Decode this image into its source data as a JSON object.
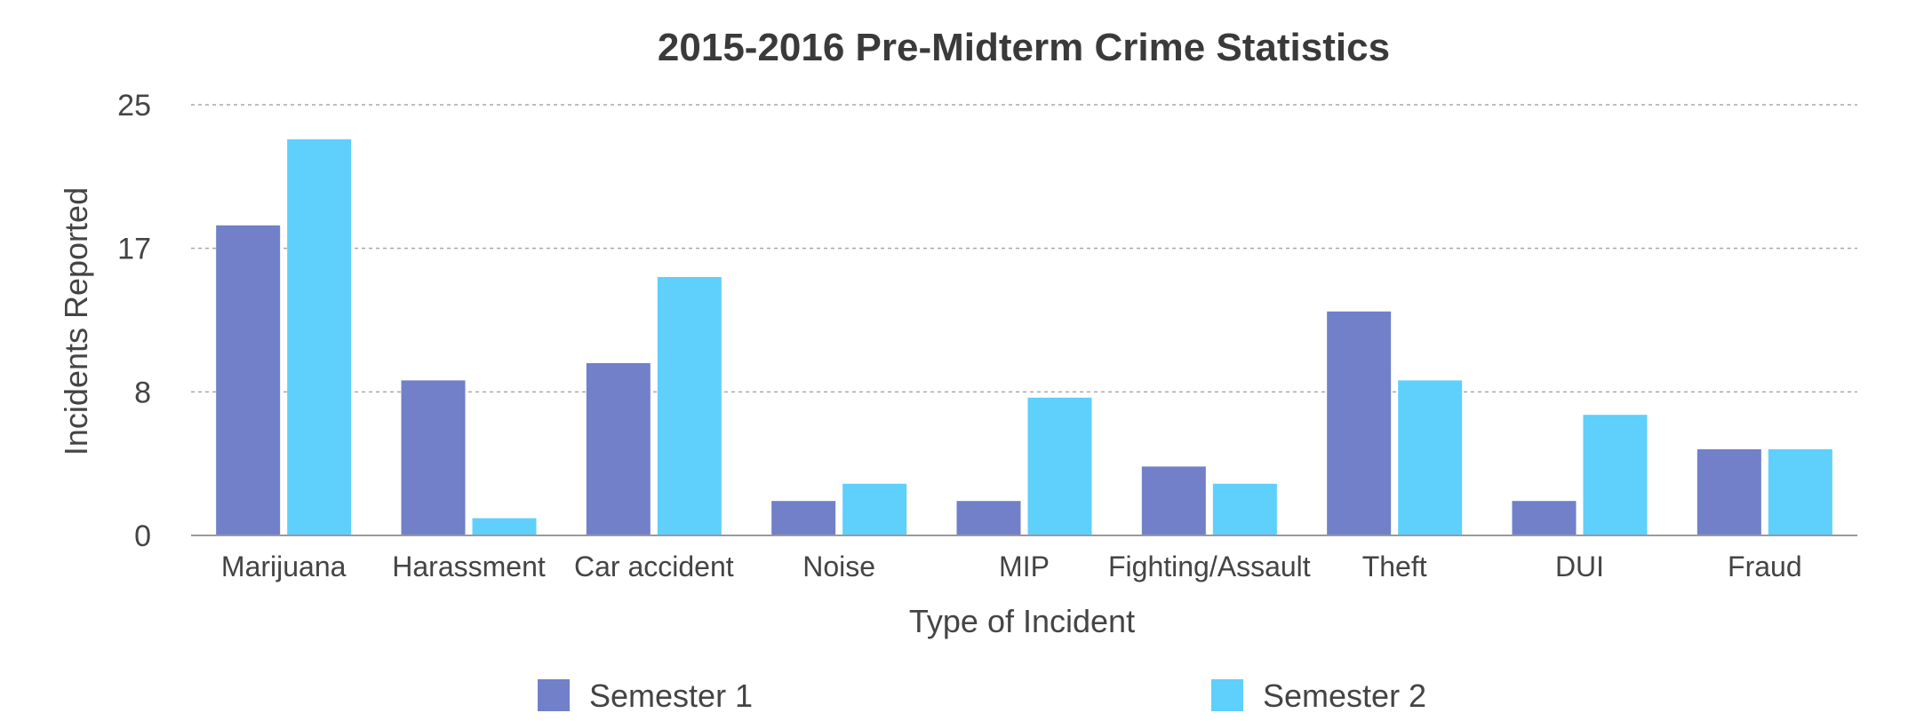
{
  "chart_data": {
    "type": "bar",
    "title": "2015-2016 Pre-Midterm Crime Statistics",
    "xlabel": "Type of Incident",
    "ylabel": "Incidents Reported",
    "ylim": [
      0,
      25
    ],
    "yticks": [
      {
        "value": 0,
        "label": "0"
      },
      {
        "value": 8.33,
        "label": "8"
      },
      {
        "value": 16.67,
        "label": "17"
      },
      {
        "value": 25,
        "label": "25"
      }
    ],
    "grid": true,
    "legend_position": "bottom",
    "categories": [
      "Marijuana",
      "Harassment",
      "Car accident",
      "Noise",
      "MIP",
      "Fighting/Assault",
      "Theft",
      "DUI",
      "Fraud"
    ],
    "series": [
      {
        "name": "Semester 1",
        "color": "#7180C8",
        "values": [
          18,
          9,
          10,
          2,
          2,
          4,
          13,
          2,
          5
        ]
      },
      {
        "name": "Semester 2",
        "color": "#5FCFFC",
        "values": [
          23,
          1,
          15,
          3,
          8,
          3,
          9,
          7,
          5
        ]
      }
    ]
  }
}
